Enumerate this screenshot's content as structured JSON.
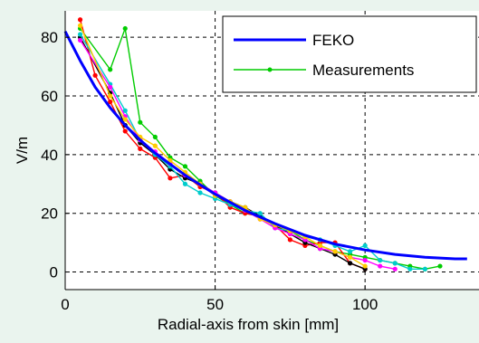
{
  "chart_data": {
    "type": "line",
    "xlabel": "Radial-axis from skin [mm]",
    "ylabel": "V/m",
    "xlim": [
      0,
      138
    ],
    "ylim": [
      -6,
      89
    ],
    "xticks": [
      0,
      50,
      100
    ],
    "yticks": [
      0,
      20,
      40,
      60,
      80
    ],
    "grid": true,
    "legend_position": "top-right",
    "legend": [
      "FEKO",
      "Measurements"
    ],
    "feko": {
      "name": "FEKO",
      "color": "#0000ff",
      "x": [
        0,
        5,
        10,
        15,
        20,
        25,
        30,
        40,
        50,
        60,
        70,
        80,
        90,
        100,
        110,
        120,
        130,
        134
      ],
      "y": [
        82,
        72,
        63,
        56,
        50,
        45,
        40.5,
        33,
        26.5,
        21,
        16.5,
        12.5,
        9.5,
        7.5,
        6,
        5,
        4.5,
        4.5
      ]
    },
    "measurements": [
      {
        "name": "Measurements",
        "color": "#00cc00",
        "x": [
          5,
          15,
          20,
          25,
          30,
          35,
          40,
          45,
          50,
          55,
          60,
          65,
          70,
          75,
          80,
          85,
          90,
          95,
          100,
          105,
          110,
          115,
          120,
          125
        ],
        "y": [
          83,
          69,
          83,
          51,
          46,
          39,
          36,
          31,
          26,
          23,
          20,
          19,
          16,
          14,
          11,
          9,
          7,
          6,
          5,
          4,
          3,
          2,
          1,
          2
        ]
      },
      {
        "name": "",
        "color": "#ff0000",
        "x": [
          5,
          10,
          15,
          20,
          25,
          30,
          35,
          40,
          45,
          50,
          55,
          60,
          65,
          70,
          75,
          80,
          85,
          90,
          95,
          100
        ],
        "y": [
          86,
          67,
          58,
          48,
          42,
          39,
          32,
          33,
          29,
          27,
          22,
          20,
          19,
          16,
          11,
          9,
          10,
          10,
          3,
          1
        ]
      },
      {
        "name": "",
        "color": "#000000",
        "x": [
          5,
          15,
          20,
          25,
          30,
          35,
          40,
          45,
          50,
          55,
          60,
          65,
          70,
          75,
          80,
          85,
          90,
          95,
          100
        ],
        "y": [
          80,
          61,
          50,
          44,
          40,
          35,
          32,
          30,
          27,
          24,
          22,
          19,
          16,
          13,
          10,
          8,
          6,
          3,
          1
        ]
      },
      {
        "name": "",
        "color": "#00cccc",
        "x": [
          5,
          15,
          20,
          25,
          30,
          35,
          40,
          45,
          50,
          55,
          60,
          65,
          70,
          75,
          80,
          85,
          90,
          95,
          100,
          105,
          110,
          115,
          120
        ],
        "y": [
          81,
          64,
          55,
          45,
          40,
          36,
          30,
          27,
          25,
          23,
          21,
          20,
          15,
          14,
          12,
          11,
          9,
          7,
          9,
          4,
          3,
          1,
          1
        ]
      },
      {
        "name": "",
        "color": "#ff00ff",
        "x": [
          5,
          15,
          20,
          25,
          30,
          35,
          40,
          45,
          50,
          55,
          60,
          65,
          70,
          75,
          80,
          85,
          90,
          95,
          100,
          105,
          110
        ],
        "y": [
          79,
          63,
          53,
          45,
          41,
          37,
          33,
          30,
          27,
          24,
          21,
          18,
          15,
          13,
          11,
          8,
          7,
          5,
          4,
          2,
          1
        ]
      },
      {
        "name": "",
        "color": "#ffcc00",
        "x": [
          5,
          15,
          20,
          25,
          30,
          35,
          40,
          45,
          50,
          55,
          60,
          65,
          70,
          75,
          80,
          85,
          90,
          95,
          100
        ],
        "y": [
          84,
          60,
          52,
          46,
          43,
          38,
          34,
          30,
          26,
          24,
          22,
          18,
          16,
          14,
          12,
          9,
          7,
          5,
          2
        ]
      }
    ]
  }
}
